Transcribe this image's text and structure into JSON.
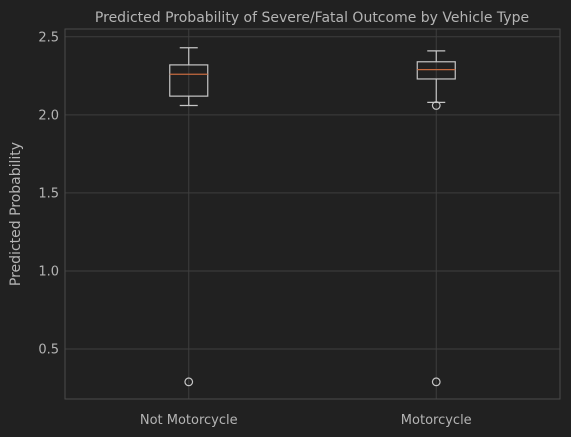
{
  "colors": {
    "figure_background": "#212121",
    "axes_background": "#212121",
    "grid": "#3e3e3e",
    "axes_edge": "#4a4a4a",
    "text": "#b4b4b4",
    "box": "#c6c6c6",
    "median": "#c56a3f"
  },
  "chart_data": {
    "type": "box",
    "title": "Predicted Probability of Severe/Fatal Outcome by Vehicle Type",
    "xlabel": "",
    "ylabel": "Predicted Probability",
    "categories": [
      "Not Motorcycle",
      "Motorcycle"
    ],
    "ylim": [
      0.18,
      2.55
    ],
    "yticks": [
      0.5,
      1.0,
      1.5,
      2.0,
      2.5
    ],
    "ytick_labels": [
      "0.5",
      "1.0",
      "1.5",
      "2.0",
      "2.5"
    ],
    "grid": true,
    "boxes": [
      {
        "category": "Not Motorcycle",
        "whisker_low": 2.06,
        "q1": 2.12,
        "median": 2.26,
        "q3": 2.32,
        "whisker_high": 2.43,
        "outliers": [
          0.29
        ]
      },
      {
        "category": "Motorcycle",
        "whisker_low": 2.08,
        "q1": 2.23,
        "median": 2.29,
        "q3": 2.34,
        "whisker_high": 2.41,
        "outliers": [
          2.06,
          0.29
        ]
      }
    ]
  }
}
